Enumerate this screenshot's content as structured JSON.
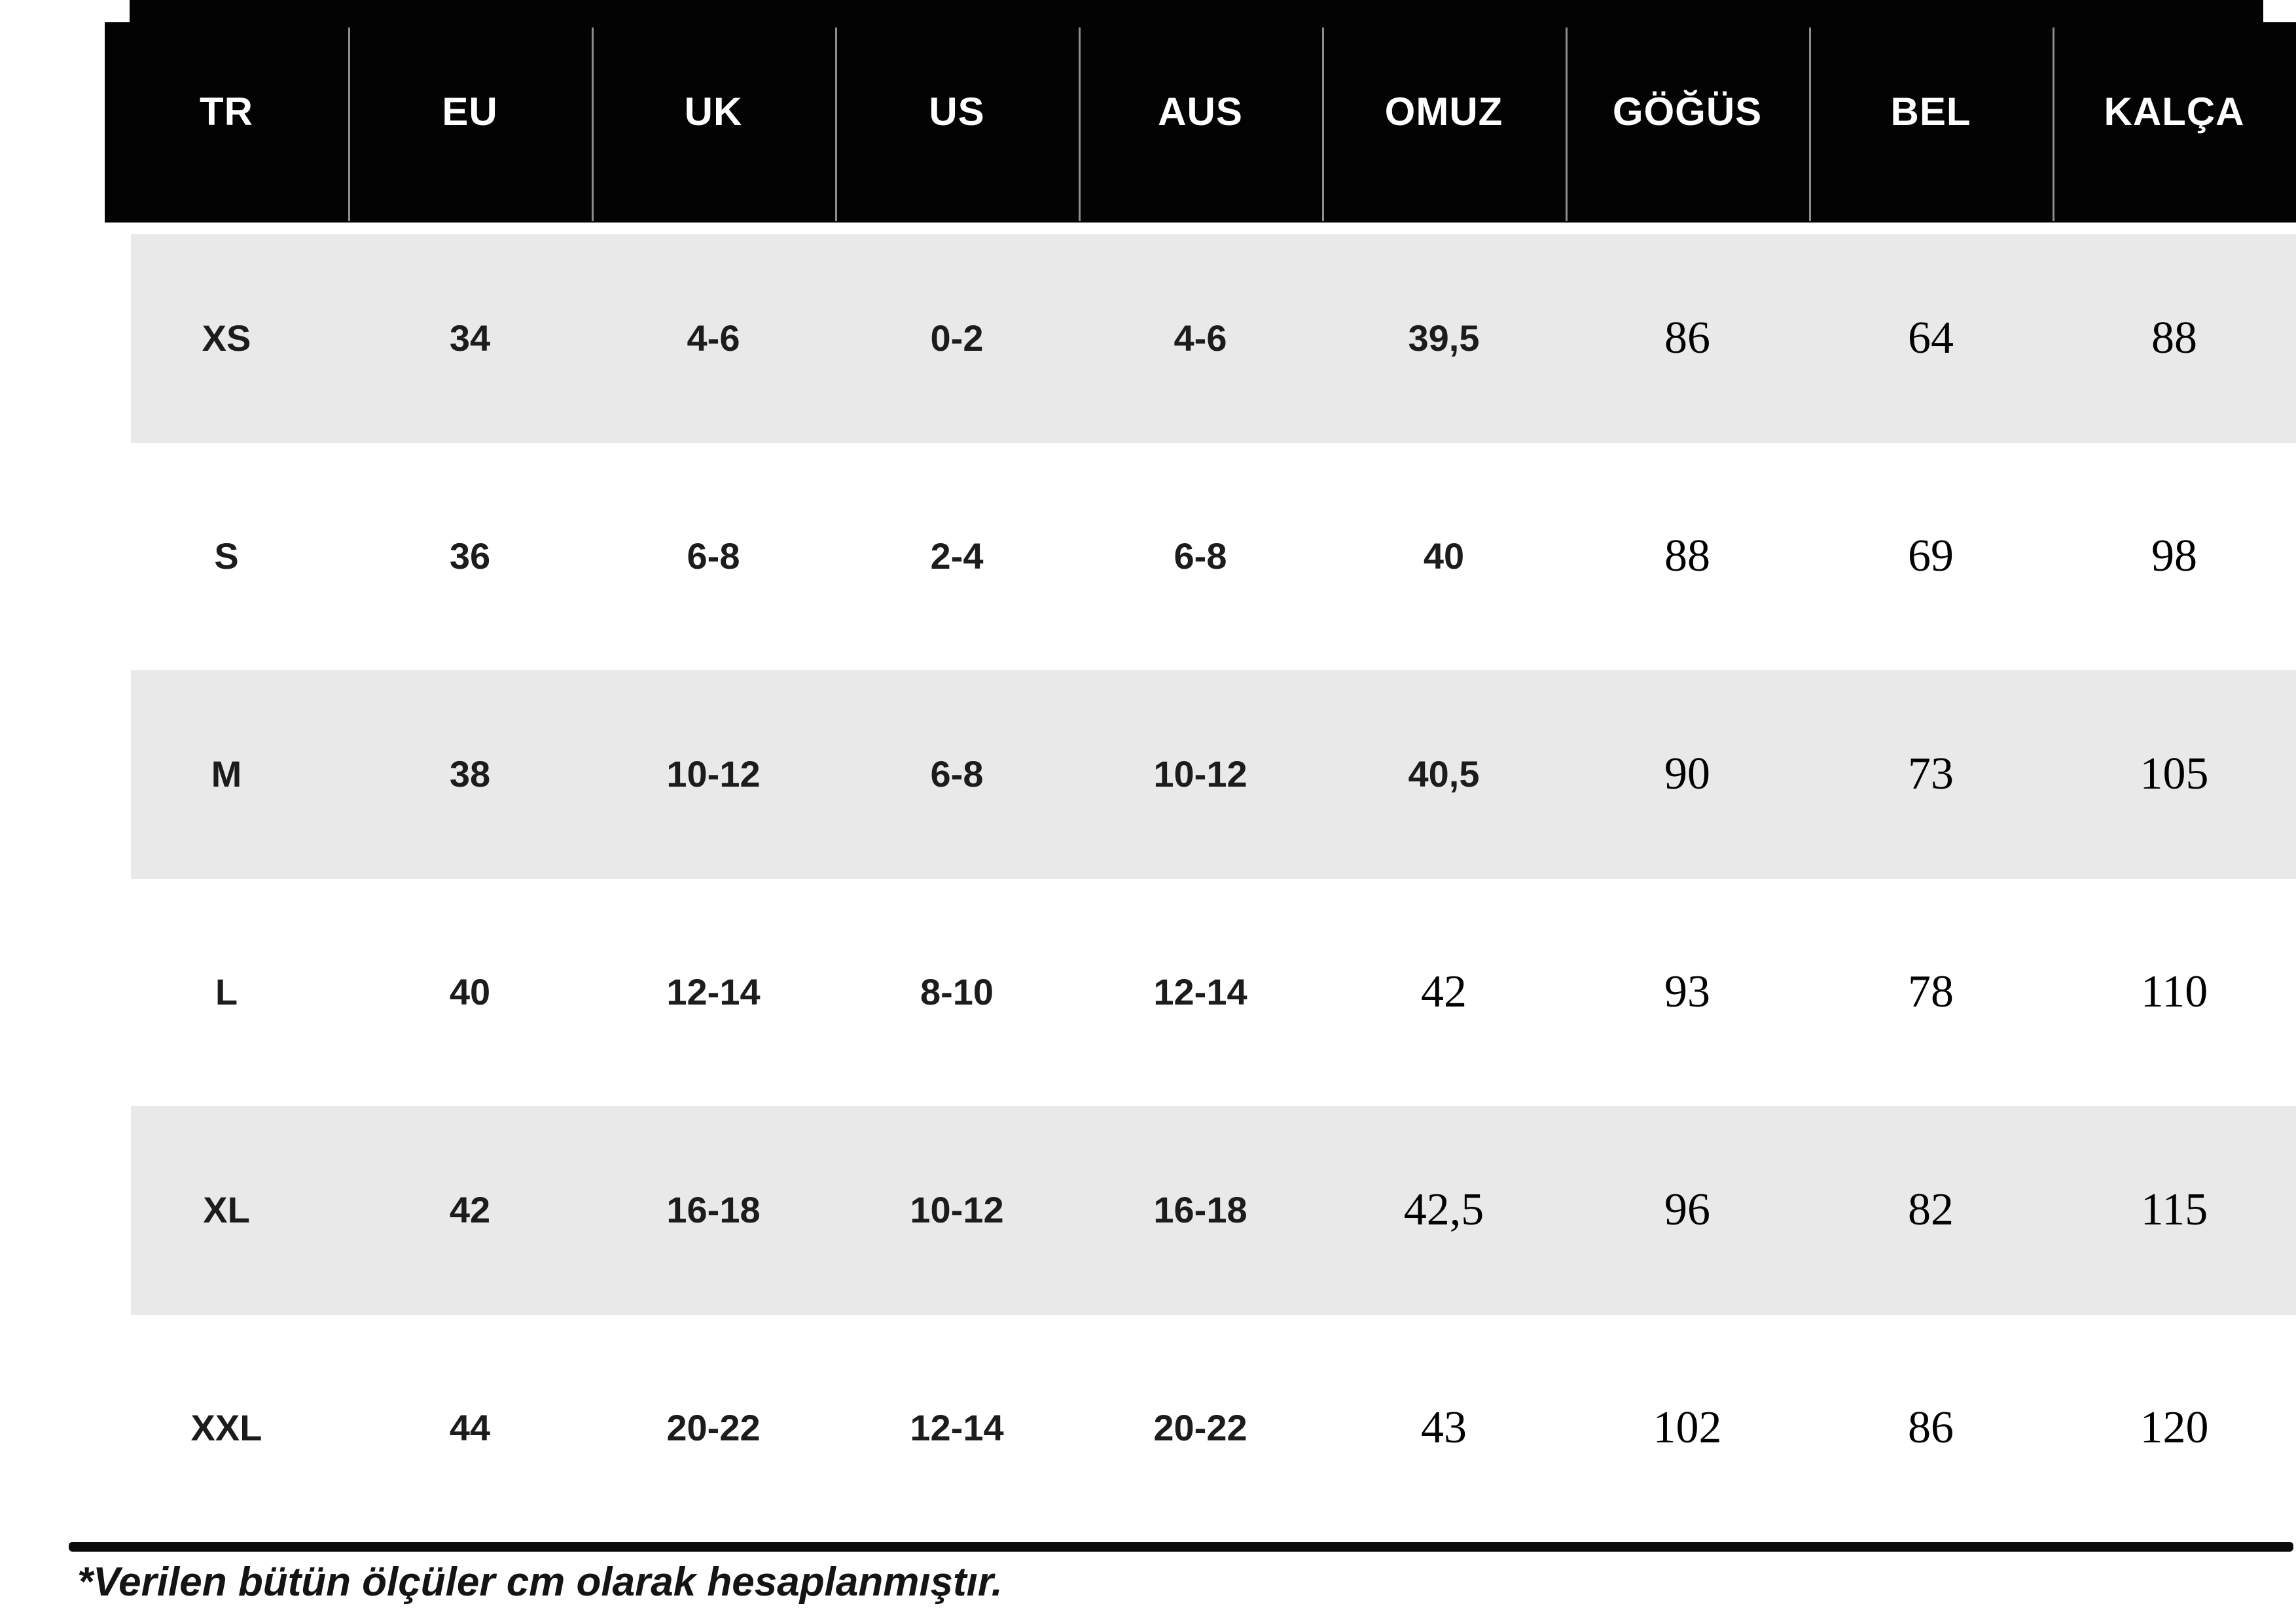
{
  "chart_data": {
    "type": "table",
    "columns": [
      "TR",
      "EU",
      "UK",
      "US",
      "AUS",
      "OMUZ",
      "GÖĞÜS",
      "BEL",
      "KALÇA"
    ],
    "rows": [
      [
        "XS",
        "34",
        "4-6",
        "0-2",
        "4-6",
        "39,5",
        "86",
        "64",
        "88"
      ],
      [
        "S",
        "36",
        "6-8",
        "2-4",
        "6-8",
        "40",
        "88",
        "69",
        "98"
      ],
      [
        "M",
        "38",
        "10-12",
        "6-8",
        "10-12",
        "40,5",
        "90",
        "73",
        "105"
      ],
      [
        "L",
        "40",
        "12-14",
        "8-10",
        "12-14",
        "42",
        "93",
        "78",
        "110"
      ],
      [
        "XL",
        "42",
        "16-18",
        "10-12",
        "16-18",
        "42,5",
        "96",
        "82",
        "115"
      ],
      [
        "XXL",
        "44",
        "20-22",
        "12-14",
        "20-22",
        "43",
        "102",
        "86",
        "120"
      ]
    ],
    "footnote": "*Verilen bütün ölçüler cm olarak hesaplanmıştır.",
    "layout": {
      "striped_rows": [
        "XS",
        "M",
        "XL"
      ],
      "grid": "none",
      "header_position": "top"
    }
  },
  "colors": {
    "header_bg": "#030303",
    "header_text": "#ffffff",
    "stripe_bg": "#e9e9e9",
    "body_text": "#1c1c1c",
    "rule": "#0b0b0b"
  }
}
